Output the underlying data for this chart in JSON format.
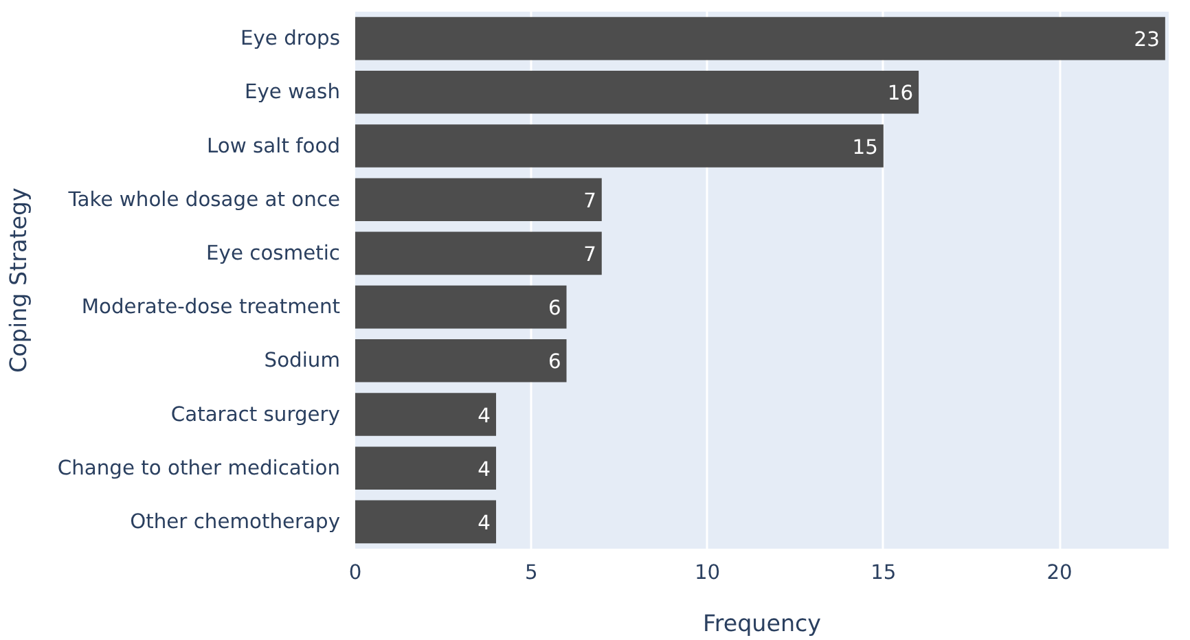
{
  "chart_data": {
    "type": "bar",
    "orientation": "horizontal",
    "xlabel": "Frequency",
    "ylabel": "Coping Strategy",
    "categories": [
      "Eye drops",
      "Eye wash",
      "Low salt food",
      "Take whole dosage at once",
      "Eye cosmetic",
      "Moderate-dose treatment",
      "Sodium",
      "Cataract surgery",
      "Change to other medication",
      "Other chemotherapy"
    ],
    "values": [
      23,
      16,
      15,
      7,
      7,
      6,
      6,
      4,
      4,
      4
    ],
    "color": "#4d4d4d",
    "xlim": [
      0,
      23.1
    ],
    "xticks": [
      0,
      5,
      10,
      15,
      20
    ],
    "grid": "x",
    "data_labels": true
  }
}
